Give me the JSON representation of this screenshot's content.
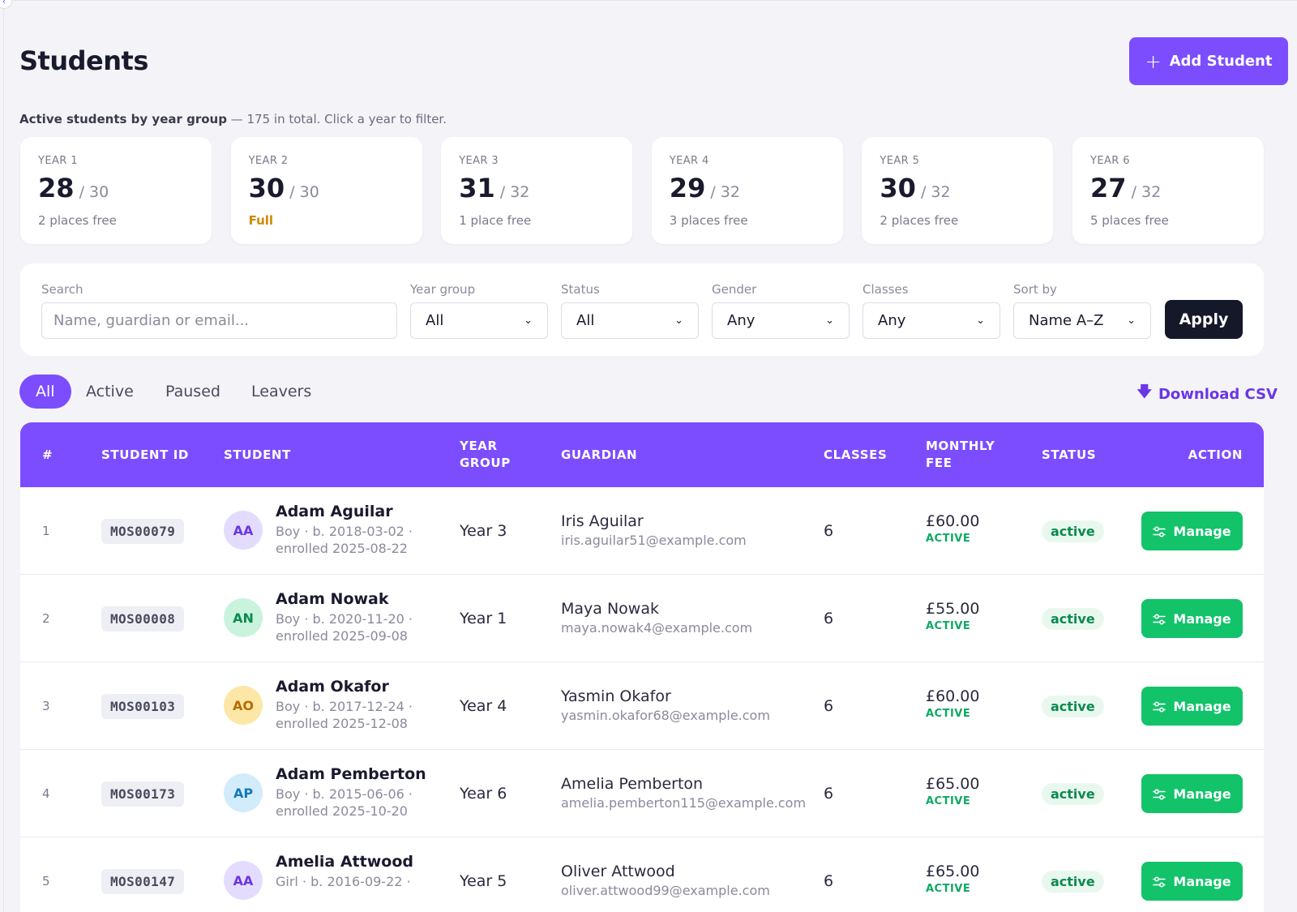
{
  "page": {
    "title": "Students",
    "add_label": "Add Student"
  },
  "summary": {
    "caption_bold": "Active students by year group",
    "caption_rest": " — 175 in total. Click a year to filter.",
    "years": [
      {
        "label": "YEAR 1",
        "count": "28",
        "cap": " / 30",
        "free": "2 places free",
        "full": false
      },
      {
        "label": "YEAR 2",
        "count": "30",
        "cap": " / 30",
        "free": "Full",
        "full": true
      },
      {
        "label": "YEAR 3",
        "count": "31",
        "cap": " / 32",
        "free": "1 place free",
        "full": false
      },
      {
        "label": "YEAR 4",
        "count": "29",
        "cap": " / 32",
        "free": "3 places free",
        "full": false
      },
      {
        "label": "YEAR 5",
        "count": "30",
        "cap": " / 32",
        "free": "2 places free",
        "full": false
      },
      {
        "label": "YEAR 6",
        "count": "27",
        "cap": " / 32",
        "free": "5 places free",
        "full": false
      }
    ]
  },
  "filters": {
    "search_label": "Search",
    "search_placeholder": "Name, guardian or email...",
    "year_label": "Year group",
    "year_value": "All",
    "status_label": "Status",
    "status_value": "All",
    "gender_label": "Gender",
    "gender_value": "Any",
    "classes_label": "Classes",
    "classes_value": "Any",
    "sort_label": "Sort by",
    "sort_value": "Name A–Z",
    "apply_label": "Apply"
  },
  "tabs": [
    "All",
    "Active",
    "Paused",
    "Leavers"
  ],
  "download_label": "Download CSV",
  "table": {
    "headers": {
      "num": "#",
      "student_id": "STUDENT ID",
      "student": "STUDENT",
      "year_group_1": "YEAR",
      "year_group_2": "GROUP",
      "guardian": "GUARDIAN",
      "classes": "CLASSES",
      "fee_1": "MONTHLY",
      "fee_2": "FEE",
      "status": "STATUS",
      "action": "ACTION"
    },
    "manage_label": "Manage",
    "rows": [
      {
        "num": "1",
        "id": "MOS00079",
        "initials": "AA",
        "avatar_bg": "#e4dcff",
        "avatar_fg": "#6a36e8",
        "name": "Adam Aguilar",
        "meta1": "Boy · b. 2018-03-02 ·",
        "meta2": "enrolled 2025-08-22",
        "year": "Year 3",
        "guardian": "Iris Aguilar",
        "email": "iris.aguilar51@example.com",
        "classes": "6",
        "fee": "£60.00",
        "fee_status": "ACTIVE",
        "status": "active"
      },
      {
        "num": "2",
        "id": "MOS00008",
        "initials": "AN",
        "avatar_bg": "#c9f3dd",
        "avatar_fg": "#0b8a4f",
        "name": "Adam Nowak",
        "meta1": "Boy · b. 2020-11-20 ·",
        "meta2": "enrolled 2025-09-08",
        "year": "Year 1",
        "guardian": "Maya Nowak",
        "email": "maya.nowak4@example.com",
        "classes": "6",
        "fee": "£55.00",
        "fee_status": "ACTIVE",
        "status": "active"
      },
      {
        "num": "3",
        "id": "MOS00103",
        "initials": "AO",
        "avatar_bg": "#fde7a6",
        "avatar_fg": "#b76b00",
        "name": "Adam Okafor",
        "meta1": "Boy · b. 2017-12-24 ·",
        "meta2": "enrolled 2025-12-08",
        "year": "Year 4",
        "guardian": "Yasmin Okafor",
        "email": "yasmin.okafor68@example.com",
        "classes": "6",
        "fee": "£60.00",
        "fee_status": "ACTIVE",
        "status": "active"
      },
      {
        "num": "4",
        "id": "MOS00173",
        "initials": "AP",
        "avatar_bg": "#d3ecfb",
        "avatar_fg": "#1478b8",
        "name": "Adam Pemberton",
        "meta1": "Boy · b. 2015-06-06 ·",
        "meta2": "enrolled 2025-10-20",
        "year": "Year 6",
        "guardian": "Amelia Pemberton",
        "email": "amelia.pemberton115@example.com",
        "classes": "6",
        "fee": "£65.00",
        "fee_status": "ACTIVE",
        "status": "active"
      },
      {
        "num": "5",
        "id": "MOS00147",
        "initials": "AA",
        "avatar_bg": "#e4dcff",
        "avatar_fg": "#6a36e8",
        "name": "Amelia Attwood",
        "meta1": "Girl · b. 2016-09-22 ·",
        "meta2": "",
        "year": "Year 5",
        "guardian": "Oliver Attwood",
        "email": "oliver.attwood99@example.com",
        "classes": "6",
        "fee": "£65.00",
        "fee_status": "ACTIVE",
        "status": "active"
      }
    ]
  },
  "colors": {
    "accent": "#7c4dff",
    "success": "#12c36a",
    "dark": "#141829",
    "warning": "#d08a00"
  }
}
